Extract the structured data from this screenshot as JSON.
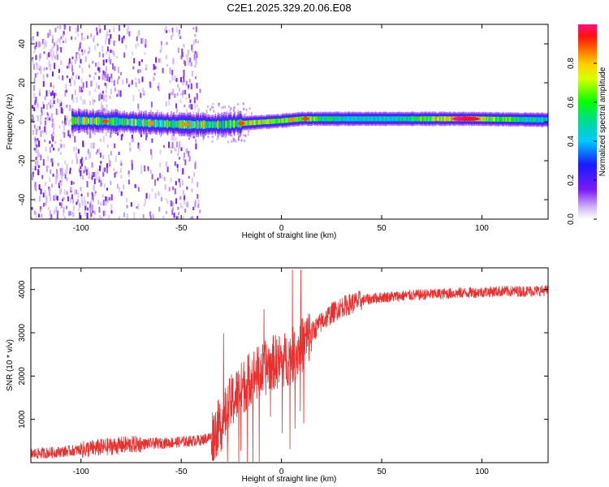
{
  "title": "C2E1.2025.329.20.06.E08",
  "chart_data": [
    {
      "type": "heatmap",
      "id": "spectrogram",
      "xlabel": "Height of straight line (km)",
      "ylabel": "Frequency (Hz)",
      "xlim": [
        -125,
        133
      ],
      "ylim": [
        -50,
        50
      ],
      "xticks": [
        -100,
        -50,
        0,
        50,
        100
      ],
      "xtick_labels": [
        "-100",
        "-50",
        "0",
        "50",
        "100"
      ],
      "yticks": [
        -40,
        -20,
        0,
        20,
        40
      ],
      "ytick_labels": [
        "-40",
        "-20",
        "0",
        "20",
        "40"
      ],
      "colorbar": {
        "label": "Normalized spectral amplitude",
        "range": [
          0,
          1
        ],
        "ticks": [
          0.0,
          0.2,
          0.4,
          0.6,
          0.8
        ],
        "tick_labels": [
          "0.0",
          "0.2",
          "0.4",
          "0.6",
          "0.8"
        ]
      },
      "ridge": {
        "x": [
          -100,
          -80,
          -60,
          -45,
          -30,
          -15,
          0,
          10,
          30,
          60,
          90,
          95,
          130
        ],
        "y": [
          0.5,
          0.0,
          -1.0,
          -1.5,
          -1.5,
          -0.5,
          0.5,
          1.5,
          1.5,
          1.5,
          1.5,
          1.5,
          1.0
        ],
        "amplitude": [
          0.75,
          0.75,
          0.7,
          0.8,
          0.65,
          0.85,
          0.8,
          0.8,
          0.55,
          0.55,
          1.0,
          0.85,
          0.5
        ]
      },
      "noise_region_x": [
        -125,
        -40
      ]
    },
    {
      "type": "line",
      "id": "snr",
      "xlabel": "Height of straight line (km)",
      "ylabel": "SNR (10 * v/v)",
      "xlim": [
        -125,
        133
      ],
      "ylim": [
        0,
        4500
      ],
      "xticks": [
        -100,
        -50,
        0,
        50,
        100
      ],
      "xtick_labels": [
        "-100",
        "-50",
        "0",
        "50",
        "100"
      ],
      "yticks": [
        1000,
        2000,
        3000,
        4000
      ],
      "ytick_labels": [
        "1000",
        "2000",
        "3000",
        "4000"
      ],
      "color": "#e8302f",
      "series": [
        {
          "name": "SNR",
          "x": [
            -125,
            -110,
            -100,
            -90,
            -80,
            -70,
            -60,
            -50,
            -40,
            -35,
            -30,
            -25,
            -20,
            -15,
            -10,
            -5,
            0,
            5,
            10,
            15,
            20,
            25,
            30,
            40,
            50,
            60,
            70,
            80,
            90,
            100,
            110,
            120,
            133
          ],
          "y": [
            200,
            250,
            300,
            350,
            400,
            430,
            450,
            480,
            520,
            600,
            900,
            1400,
            1700,
            2000,
            2100,
            2300,
            2350,
            2450,
            2700,
            3000,
            3250,
            3450,
            3600,
            3750,
            3820,
            3850,
            3880,
            3900,
            3920,
            3940,
            3960,
            3960,
            3980
          ]
        }
      ]
    }
  ]
}
